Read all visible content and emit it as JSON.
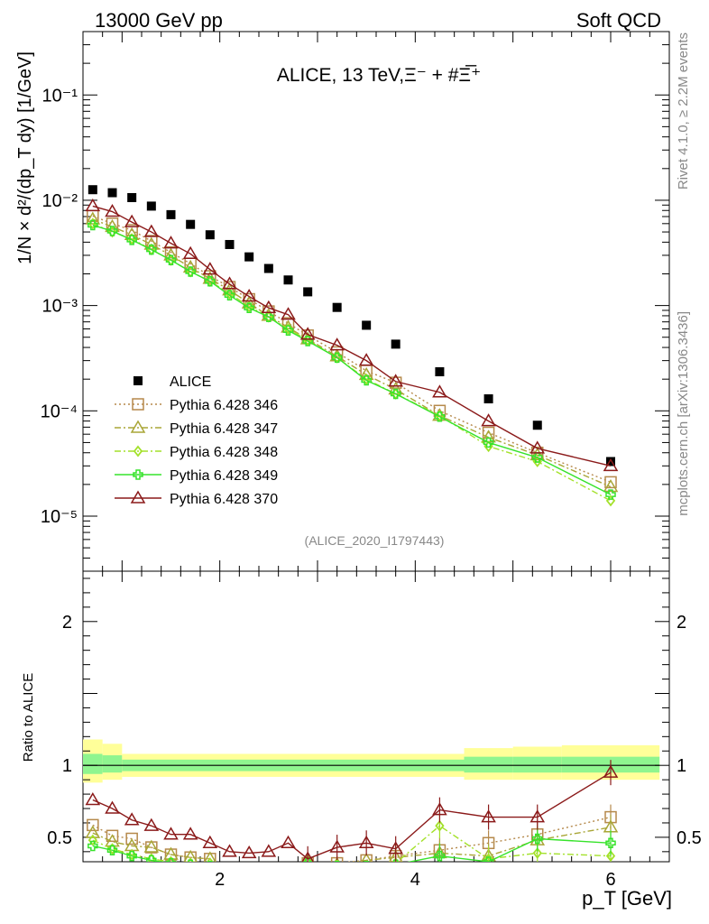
{
  "header": {
    "left": "13000 GeV pp",
    "right": "Soft QCD"
  },
  "side": {
    "rivet": "Rivet 4.1.0, ≥ 2.2M events",
    "mcplots": "mcplots.cern.ch [arXiv:1306.3436]"
  },
  "plot_title": "ALICE, 13 TeV,Ξ⁻ + #Ξ̅⁺",
  "analysis_id": "(ALICE_2020_I1797443)",
  "ylabel_top": "1/N × d²/(dp_T dy) [1/GeV]",
  "ylabel_bottom": "Ratio to ALICE",
  "xlabel": "p_T [GeV]",
  "colors": {
    "data": "#000000",
    "p346": "#b5894b",
    "p347": "#a9a637",
    "p348": "#a3e12a",
    "p349": "#37e32b",
    "p370": "#8b1a1a",
    "band_yellow": "#ffff99",
    "band_green": "#8ff58f"
  },
  "chart_data": [
    {
      "type": "scatter",
      "yscale": "log",
      "xlim": [
        0.6,
        6.6
      ],
      "ylim": [
        3e-06,
        0.4
      ],
      "x_ticks": [
        2,
        4,
        6
      ],
      "y_tick_labels": [
        "10⁻¹",
        "10⁻²",
        "10⁻³",
        "10⁻⁴",
        "10⁻⁵"
      ],
      "x": [
        0.7,
        0.9,
        1.1,
        1.3,
        1.5,
        1.7,
        1.9,
        2.1,
        2.3,
        2.5,
        2.7,
        2.9,
        3.2,
        3.5,
        3.8,
        4.25,
        4.75,
        5.25,
        6.0
      ],
      "series": [
        {
          "name": "ALICE",
          "marker": "square",
          "values": [
            0.0126,
            0.0118,
            0.0106,
            0.0088,
            0.0073,
            0.0059,
            0.0047,
            0.0038,
            0.0029,
            0.00225,
            0.00175,
            0.00135,
            0.00096,
            0.00065,
            0.00043,
            0.000235,
            0.00013,
            7.3e-05,
            3.3e-05
          ]
        },
        {
          "name": "Pythia 6.428 346",
          "marker": "open-square",
          "values": [
            0.0071,
            0.006,
            0.0052,
            0.0041,
            0.0032,
            0.0025,
            0.0019,
            0.0015,
            0.00115,
            0.00088,
            0.00068,
            0.00052,
            0.00036,
            0.00024,
            0.000185,
            0.0001,
            6.2e-05,
            4e-05,
            2.1e-05
          ]
        },
        {
          "name": "Pythia 6.428 347",
          "marker": "open-triangle",
          "values": [
            0.0066,
            0.0056,
            0.0047,
            0.0038,
            0.003,
            0.0023,
            0.0018,
            0.0014,
            0.00105,
            0.0008,
            0.00062,
            0.00048,
            0.00033,
            0.00022,
            0.00016,
            9e-05,
            5.6e-05,
            3.8e-05,
            1.9e-05
          ]
        },
        {
          "name": "Pythia 6.428 348",
          "marker": "diamond",
          "values": [
            0.006,
            0.005,
            0.0043,
            0.0034,
            0.0027,
            0.0021,
            0.0017,
            0.0013,
            0.00098,
            0.00078,
            0.0006,
            0.00047,
            0.00032,
            0.0002,
            0.000145,
            9e-05,
            4.6e-05,
            3.3e-05,
            1.4e-05
          ]
        },
        {
          "name": "Pythia 6.428 349",
          "marker": "cross",
          "values": [
            0.0058,
            0.0051,
            0.0042,
            0.0034,
            0.0027,
            0.0021,
            0.0017,
            0.00125,
            0.00095,
            0.00078,
            0.00058,
            0.00046,
            0.00032,
            0.000195,
            0.000145,
            8.8e-05,
            5e-05,
            3.6e-05,
            1.6e-05
          ]
        },
        {
          "name": "Pythia 6.428 370",
          "marker": "open-triangle",
          "values": [
            0.0088,
            0.0078,
            0.0062,
            0.005,
            0.0039,
            0.0031,
            0.0022,
            0.0016,
            0.00122,
            0.00095,
            0.00082,
            0.00053,
            0.00042,
            0.0003,
            0.00019,
            0.00015,
            8e-05,
            4.4e-05,
            3e-05
          ]
        }
      ]
    },
    {
      "type": "scatter",
      "title": "Ratio to ALICE",
      "xlim": [
        0.6,
        6.6
      ],
      "ylim": [
        0.33,
        2.35
      ],
      "y_ticks": [
        0.5,
        1,
        2
      ],
      "x": [
        0.7,
        0.9,
        1.1,
        1.3,
        1.5,
        1.7,
        1.9,
        2.1,
        2.3,
        2.5,
        2.7,
        2.9,
        3.2,
        3.5,
        3.8,
        4.25,
        4.75,
        5.25,
        6.0
      ],
      "band": {
        "edges": [
          0.6,
          0.8,
          1.0,
          4.5,
          5.0,
          5.5,
          6.5
        ],
        "yellow": [
          [
            0.88,
            1.18
          ],
          [
            0.9,
            1.15
          ],
          [
            0.92,
            1.08
          ],
          [
            0.9,
            1.12
          ],
          [
            0.9,
            1.13
          ],
          [
            0.9,
            1.14
          ]
        ],
        "green": [
          [
            0.94,
            1.08
          ],
          [
            0.95,
            1.07
          ],
          [
            0.96,
            1.04
          ],
          [
            0.95,
            1.06
          ],
          [
            0.95,
            1.06
          ],
          [
            0.95,
            1.06
          ]
        ]
      },
      "series": [
        {
          "name": "Pythia 6.428 346",
          "values": [
            0.585,
            0.51,
            0.49,
            0.43,
            0.38,
            0.36,
            0.35,
            null,
            null,
            null,
            null,
            0.32,
            0.32,
            0.34,
            0.37,
            0.41,
            0.46,
            0.52,
            0.64
          ]
        },
        {
          "name": "Pythia 6.428 347",
          "values": [
            0.53,
            0.47,
            0.44,
            0.43,
            0.38,
            0.36,
            0.35,
            null,
            null,
            null,
            null,
            0.33,
            0.31,
            0.34,
            0.36,
            0.39,
            0.37,
            0.48,
            0.57
          ]
        },
        {
          "name": "Pythia 6.428 348",
          "values": [
            0.48,
            0.42,
            0.38,
            0.35,
            0.33,
            0.32,
            0.32,
            null,
            null,
            null,
            null,
            0.33,
            0.31,
            0.3,
            0.32,
            0.58,
            0.35,
            0.39,
            0.37
          ]
        },
        {
          "name": "Pythia 6.428 349",
          "values": [
            0.44,
            0.41,
            0.37,
            0.34,
            0.32,
            0.31,
            0.3,
            null,
            null,
            null,
            null,
            0.32,
            0.3,
            0.3,
            0.31,
            0.37,
            0.33,
            0.49,
            0.46
          ]
        },
        {
          "name": "Pythia 6.428 370",
          "values": [
            0.76,
            0.7,
            0.62,
            0.58,
            0.52,
            0.52,
            0.46,
            0.4,
            0.39,
            0.4,
            0.46,
            0.35,
            0.43,
            0.46,
            0.42,
            0.69,
            0.64,
            0.64,
            0.95
          ]
        }
      ]
    }
  ]
}
